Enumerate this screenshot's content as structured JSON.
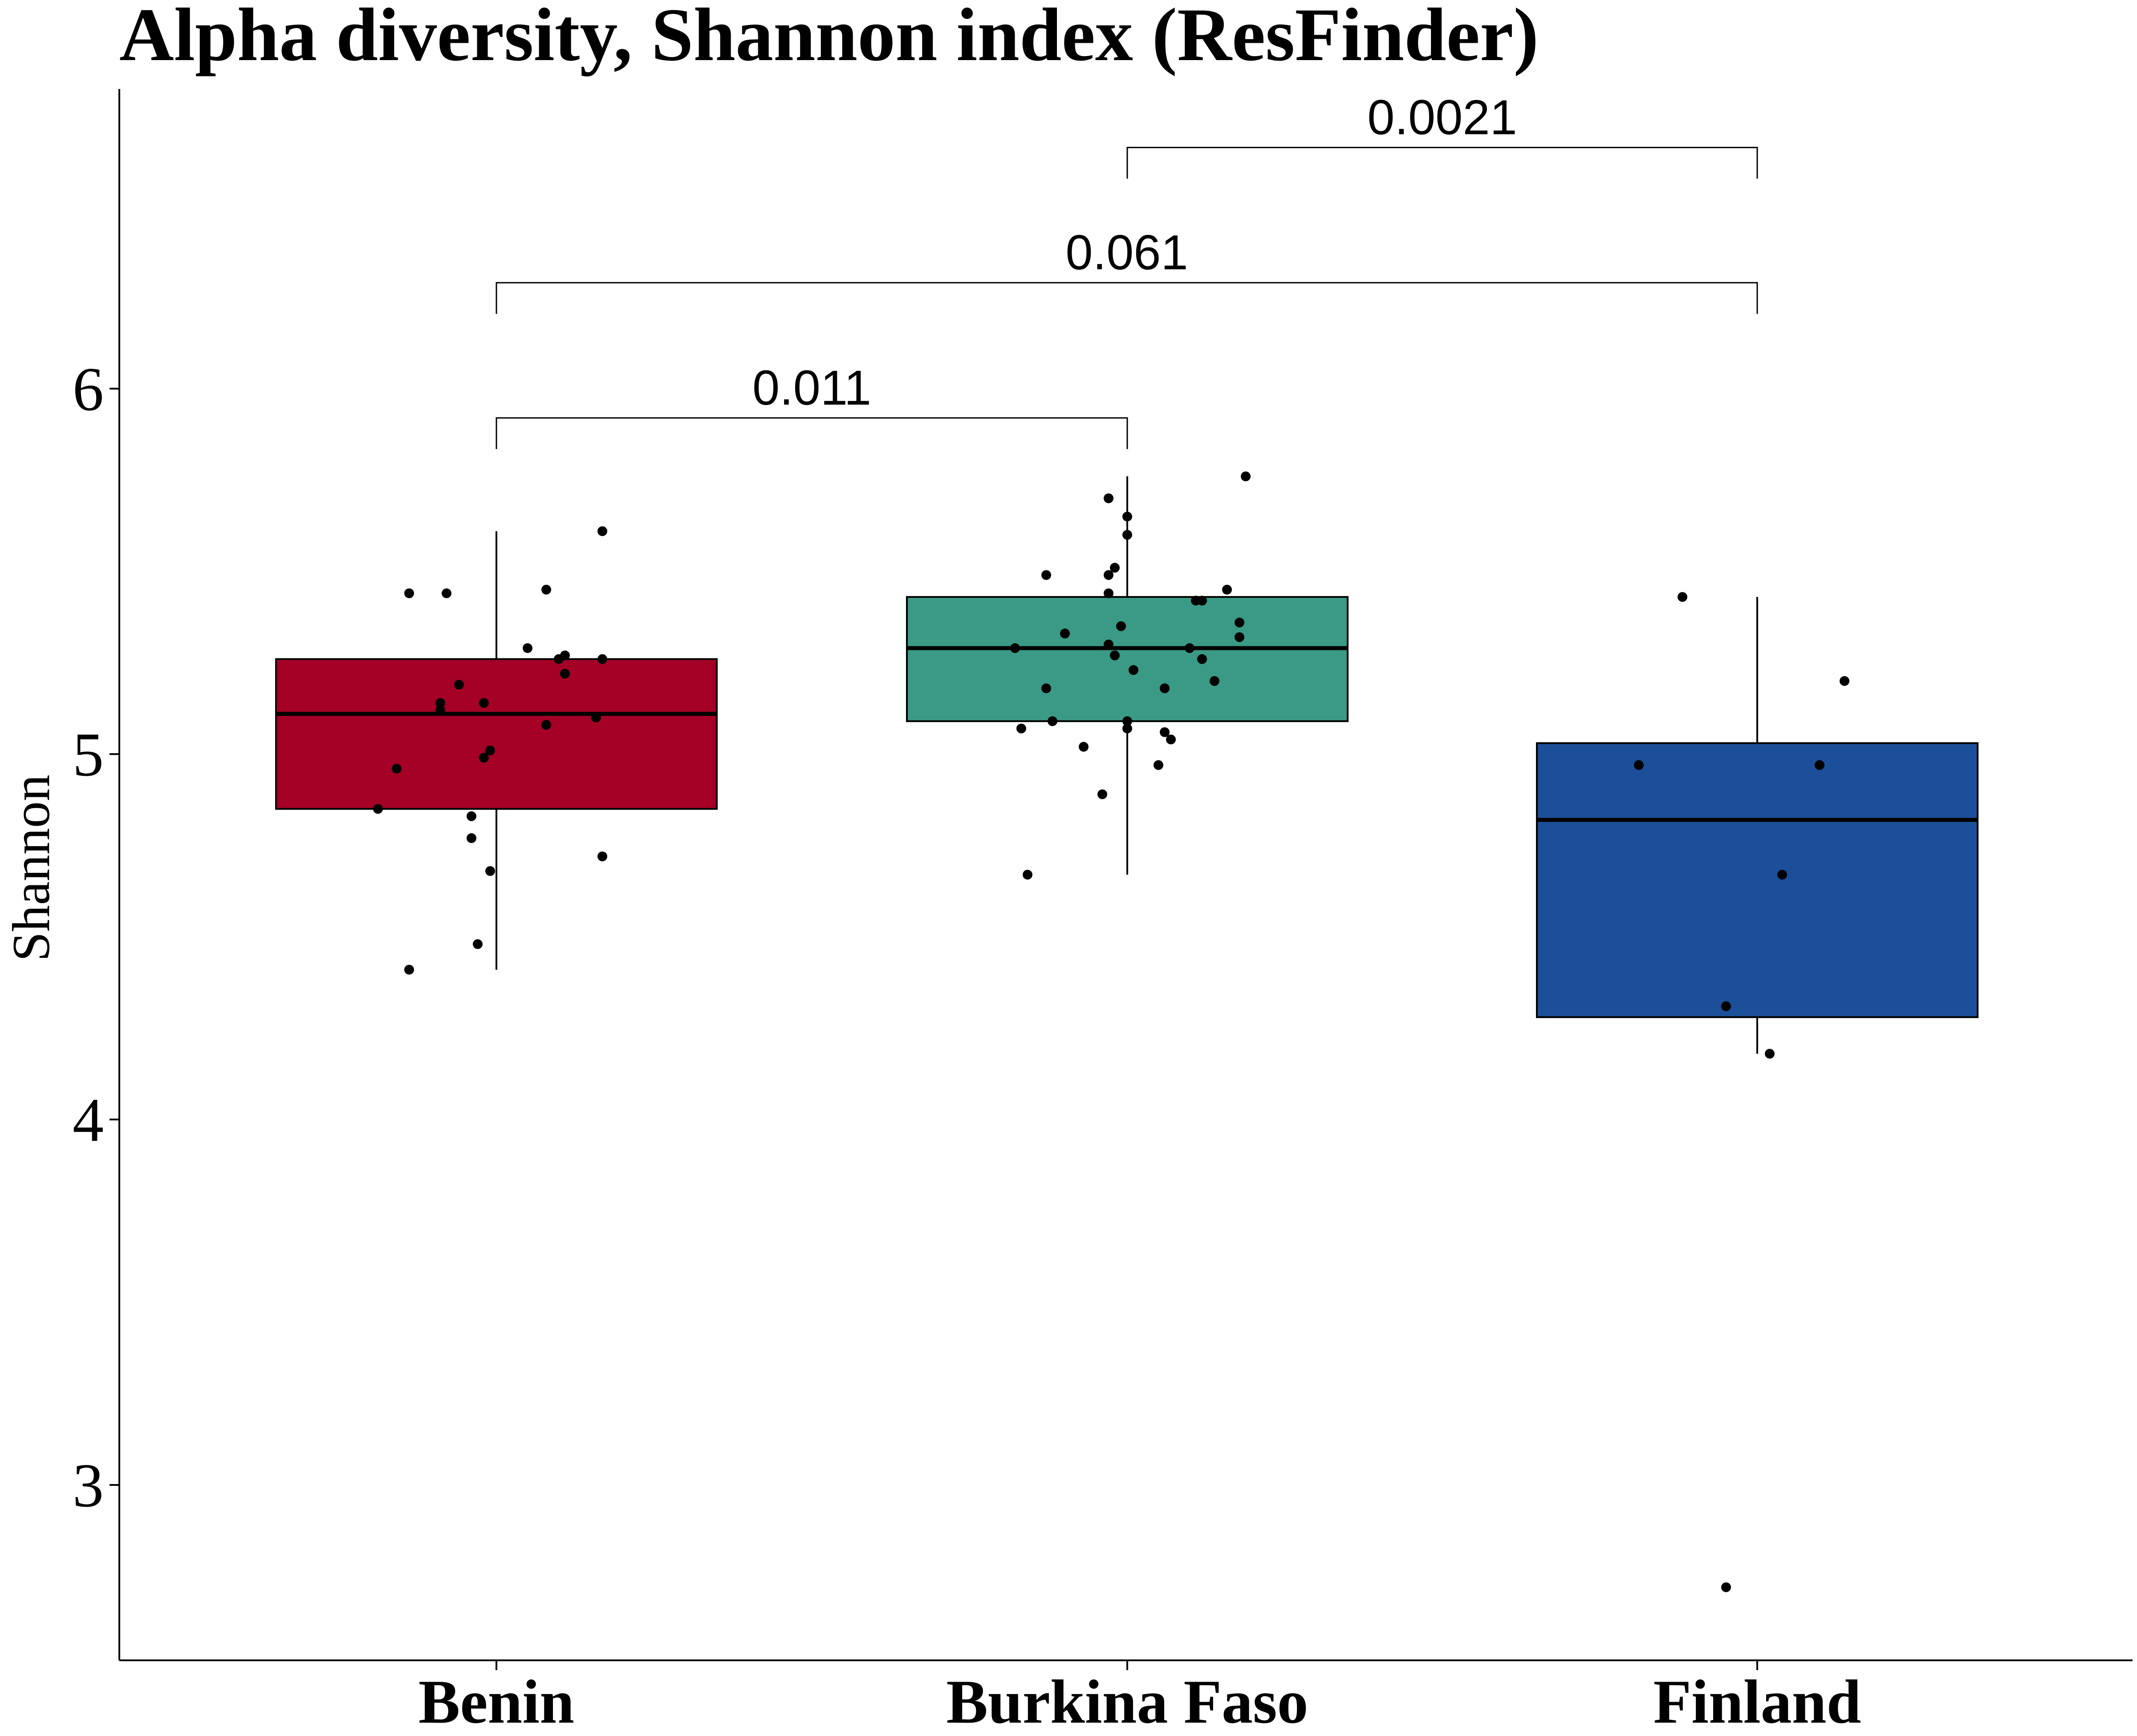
{
  "chart_data": {
    "type": "box",
    "title": "Alpha diversity, Shannon index (ResFinder)",
    "xlabel": "",
    "ylabel": "Shannon",
    "ylim": [
      2.52,
      6.82
    ],
    "yticks": [
      3,
      4,
      5,
      6
    ],
    "grid": false,
    "legend": "none",
    "categories": [
      "Benin",
      "Burkina Faso",
      "Finland"
    ],
    "boxes": [
      {
        "category": "Benin",
        "color": "#A50026",
        "whisker_low": 4.41,
        "q1": 4.85,
        "median": 5.11,
        "q3": 5.26,
        "whisker_high": 5.61,
        "points": [
          [
            -0.14,
            5.44
          ],
          [
            -0.08,
            5.44
          ],
          [
            0.08,
            5.45
          ],
          [
            0.17,
            5.61
          ],
          [
            0.05,
            5.29
          ],
          [
            0.11,
            5.27
          ],
          [
            0.1,
            5.26
          ],
          [
            0.17,
            5.26
          ],
          [
            0.11,
            5.22
          ],
          [
            -0.06,
            5.19
          ],
          [
            -0.09,
            5.14
          ],
          [
            -0.02,
            5.14
          ],
          [
            -0.09,
            5.12
          ],
          [
            0.16,
            5.1
          ],
          [
            0.08,
            5.08
          ],
          [
            -0.01,
            5.01
          ],
          [
            -0.02,
            4.99
          ],
          [
            -0.16,
            4.96
          ],
          [
            -0.19,
            4.85
          ],
          [
            -0.04,
            4.83
          ],
          [
            -0.04,
            4.77
          ],
          [
            0.17,
            4.72
          ],
          [
            -0.01,
            4.68
          ],
          [
            -0.03,
            4.48
          ],
          [
            -0.14,
            4.41
          ]
        ]
      },
      {
        "category": "Burkina Faso",
        "color": "#3A9A85",
        "whisker_low": 4.67,
        "q1": 5.09,
        "median": 5.29,
        "q3": 5.43,
        "whisker_high": 5.76,
        "points": [
          [
            0.19,
            5.76
          ],
          [
            -0.03,
            5.7
          ],
          [
            0.0,
            5.65
          ],
          [
            0.0,
            5.6
          ],
          [
            -0.13,
            5.49
          ],
          [
            -0.03,
            5.49
          ],
          [
            -0.02,
            5.51
          ],
          [
            0.16,
            5.45
          ],
          [
            -0.03,
            5.44
          ],
          [
            0.11,
            5.42
          ],
          [
            0.12,
            5.42
          ],
          [
            -0.01,
            5.35
          ],
          [
            0.18,
            5.36
          ],
          [
            -0.1,
            5.33
          ],
          [
            0.18,
            5.32
          ],
          [
            -0.18,
            5.29
          ],
          [
            -0.03,
            5.3
          ],
          [
            0.1,
            5.29
          ],
          [
            -0.02,
            5.27
          ],
          [
            0.12,
            5.26
          ],
          [
            0.01,
            5.23
          ],
          [
            0.14,
            5.2
          ],
          [
            -0.13,
            5.18
          ],
          [
            0.06,
            5.18
          ],
          [
            -0.12,
            5.09
          ],
          [
            0.0,
            5.09
          ],
          [
            -0.17,
            5.07
          ],
          [
            0.0,
            5.07
          ],
          [
            0.06,
            5.06
          ],
          [
            0.07,
            5.04
          ],
          [
            -0.07,
            5.02
          ],
          [
            0.05,
            4.97
          ],
          [
            -0.04,
            4.89
          ],
          [
            -0.16,
            4.67
          ]
        ]
      },
      {
        "category": "Finland",
        "color": "#1C4F9A",
        "whisker_low": 4.18,
        "q1": 4.28,
        "median": 4.82,
        "q3": 5.03,
        "whisker_high": 5.43,
        "points": [
          [
            -0.12,
            5.43
          ],
          [
            0.14,
            5.2
          ],
          [
            -0.19,
            4.97
          ],
          [
            0.1,
            4.97
          ],
          [
            0.04,
            4.67
          ],
          [
            -0.05,
            4.31
          ],
          [
            0.02,
            4.18
          ],
          [
            -0.05,
            2.72
          ]
        ]
      }
    ],
    "comparisons": [
      {
        "from": "Benin",
        "to": "Burkina Faso",
        "label": "0.011",
        "y": 5.92
      },
      {
        "from": "Benin",
        "to": "Finland",
        "label": "0.061",
        "y": 6.29
      },
      {
        "from": "Burkina Faso",
        "to": "Finland",
        "label": "0.0021",
        "y": 6.66
      }
    ]
  }
}
